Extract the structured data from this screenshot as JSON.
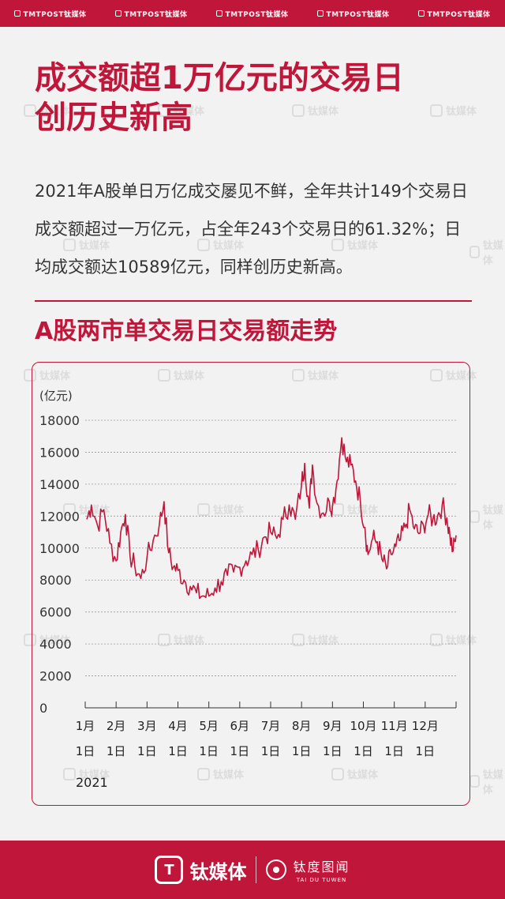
{
  "header": {
    "brands": [
      "TMTPOST钛媒体",
      "TMTPOST钛媒体",
      "TMTPOST钛媒体",
      "TMTPOST钛媒体",
      "TMTPOST钛媒体"
    ]
  },
  "watermark_text": "钛媒体",
  "title_lines": [
    "成交额超1万亿元的交易日",
    "创历史新高"
  ],
  "description": "2021年A股单日万亿成交屡见不鲜，全年共计149个交易日成交额超过一万亿元，占全年243个交易日的61.32%；日均成交额达10589亿元，同样创历史新高。",
  "subtitle": "A股两市单交易日交易额走势",
  "chart_data": {
    "type": "line",
    "title": "A股两市单交易日交易额走势",
    "ylabel": "(亿元)",
    "xlabel": "",
    "year_label": "2021",
    "ylim": [
      0,
      18000
    ],
    "yticks": [
      0,
      2000,
      4000,
      6000,
      8000,
      10000,
      12000,
      14000,
      16000,
      18000
    ],
    "xtick_labels": [
      [
        "1月",
        "1日"
      ],
      [
        "2月",
        "1日"
      ],
      [
        "3月",
        "1日"
      ],
      [
        "4月",
        "1日"
      ],
      [
        "5月",
        "1日"
      ],
      [
        "6月",
        "1日"
      ],
      [
        "7月",
        "1日"
      ],
      [
        "8月",
        "1日"
      ],
      [
        "9月",
        "1日"
      ],
      [
        "10月",
        "1日"
      ],
      [
        "11月",
        "1日"
      ],
      [
        "12月",
        "1日"
      ]
    ],
    "grid": true,
    "line_color": "#c0163a",
    "anchors": [
      [
        0.05,
        11800
      ],
      [
        0.2,
        12700
      ],
      [
        0.4,
        11400
      ],
      [
        0.6,
        12400
      ],
      [
        0.8,
        10300
      ],
      [
        1.0,
        9200
      ],
      [
        1.15,
        11000
      ],
      [
        1.3,
        12100
      ],
      [
        1.45,
        9500
      ],
      [
        1.6,
        8900
      ],
      [
        1.8,
        8100
      ],
      [
        2.0,
        9400
      ],
      [
        2.2,
        10500
      ],
      [
        2.4,
        11500
      ],
      [
        2.55,
        12900
      ],
      [
        2.7,
        9700
      ],
      [
        2.85,
        8800
      ],
      [
        3.0,
        8600
      ],
      [
        3.2,
        8000
      ],
      [
        3.4,
        7600
      ],
      [
        3.6,
        7200
      ],
      [
        3.8,
        7000
      ],
      [
        4.0,
        7000
      ],
      [
        4.2,
        7500
      ],
      [
        4.4,
        7900
      ],
      [
        4.6,
        8300
      ],
      [
        4.8,
        8500
      ],
      [
        5.0,
        8800
      ],
      [
        5.2,
        9200
      ],
      [
        5.4,
        9600
      ],
      [
        5.6,
        9900
      ],
      [
        5.8,
        10700
      ],
      [
        6.0,
        11000
      ],
      [
        6.2,
        10600
      ],
      [
        6.4,
        11800
      ],
      [
        6.6,
        12700
      ],
      [
        6.8,
        11800
      ],
      [
        7.0,
        14000
      ],
      [
        7.1,
        15300
      ],
      [
        7.25,
        12500
      ],
      [
        7.35,
        15200
      ],
      [
        7.5,
        12800
      ],
      [
        7.7,
        12200
      ],
      [
        7.9,
        12900
      ],
      [
        8.0,
        12600
      ],
      [
        8.15,
        14200
      ],
      [
        8.3,
        16900
      ],
      [
        8.45,
        15400
      ],
      [
        8.6,
        15200
      ],
      [
        8.75,
        14200
      ],
      [
        8.9,
        13000
      ],
      [
        9.05,
        11300
      ],
      [
        9.15,
        9600
      ],
      [
        9.3,
        10600
      ],
      [
        9.45,
        10400
      ],
      [
        9.6,
        9300
      ],
      [
        9.75,
        8700
      ],
      [
        9.9,
        9600
      ],
      [
        10.05,
        10100
      ],
      [
        10.2,
        10500
      ],
      [
        10.35,
        11300
      ],
      [
        10.5,
        12400
      ],
      [
        10.65,
        11200
      ],
      [
        10.8,
        10900
      ],
      [
        10.95,
        11400
      ],
      [
        11.1,
        12100
      ],
      [
        11.25,
        11800
      ],
      [
        11.4,
        12000
      ],
      [
        11.55,
        12700
      ],
      [
        11.7,
        11900
      ],
      [
        11.8,
        10800
      ],
      [
        11.9,
        9800
      ],
      [
        12.0,
        10800
      ]
    ]
  },
  "footer": {
    "logo_text": "钛媒体",
    "logo_mark": "T",
    "sub_cn": "钛度图闻",
    "sub_en": "TAI DU TUWEN"
  }
}
